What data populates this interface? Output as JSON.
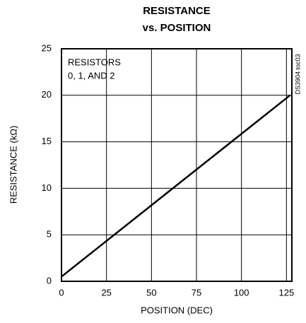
{
  "chart_data": {
    "type": "line",
    "title": [
      "RESISTANCE",
      "vs. POSITION"
    ],
    "x_label": "POSITION (DEC)",
    "y_label": "RESISTANCE (kΩ)",
    "annotation": [
      "RESISTORS",
      "0, 1, AND 2"
    ],
    "note": "DS3904 toc03",
    "x": [
      0,
      127
    ],
    "series": [
      {
        "name": null,
        "color": "#000000",
        "values": [
          0.5,
          20
        ]
      }
    ],
    "xlim": [
      0,
      128
    ],
    "xticks": [
      0,
      25,
      50,
      75,
      100,
      125
    ],
    "ylim": [
      0,
      25
    ],
    "yticks": [
      0,
      5,
      10,
      15,
      20,
      25
    ],
    "grid": true
  }
}
